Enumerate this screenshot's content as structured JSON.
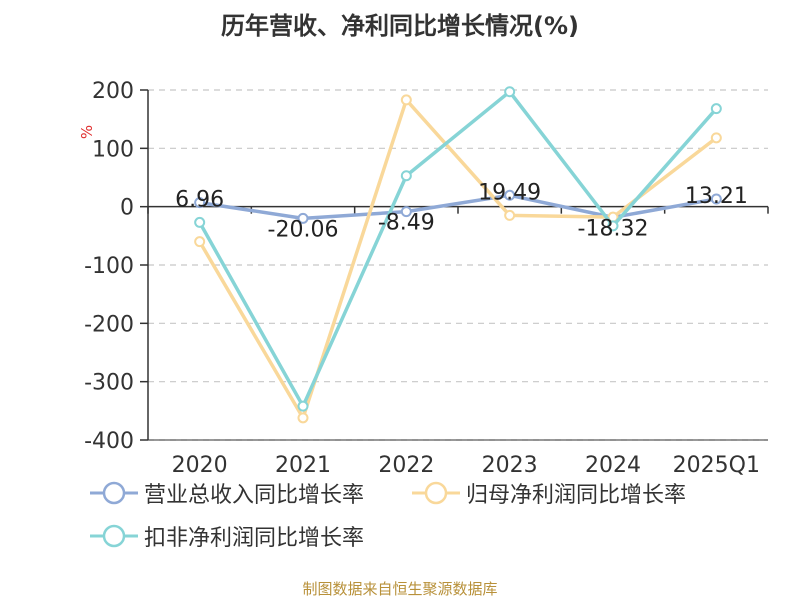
{
  "title": "历年营收、净利同比增长情况(%)",
  "source": "制图数据来自恒生聚源数据库",
  "chart_data": {
    "type": "line",
    "title": "历年营收、净利同比增长情况(%)",
    "ylabel": "%",
    "categories": [
      "2020",
      "2021",
      "2022",
      "2023",
      "2024",
      "2025Q1"
    ],
    "ylim": [
      -400,
      200
    ],
    "yticks": [
      200,
      100,
      0,
      -100,
      -200,
      -300,
      -400
    ],
    "grid": true,
    "legend_position": "bottom",
    "series": [
      {
        "name": "营业总收入同比增长率",
        "color": "#8fa9d6",
        "values": [
          6.96,
          -20.06,
          -8.49,
          19.49,
          -18.32,
          13.21
        ],
        "labels": [
          "6.96",
          "-20.06",
          "-8.49",
          "19.49",
          "-18.32",
          "13.21"
        ]
      },
      {
        "name": "归母净利润同比增长率",
        "color": "#f9d89a",
        "values": [
          -60,
          -362,
          183,
          -15,
          -18,
          118
        ]
      },
      {
        "name": "扣非净利润同比增长率",
        "color": "#86d4d6",
        "values": [
          -27,
          -342,
          53,
          197,
          -33,
          168
        ]
      }
    ]
  }
}
